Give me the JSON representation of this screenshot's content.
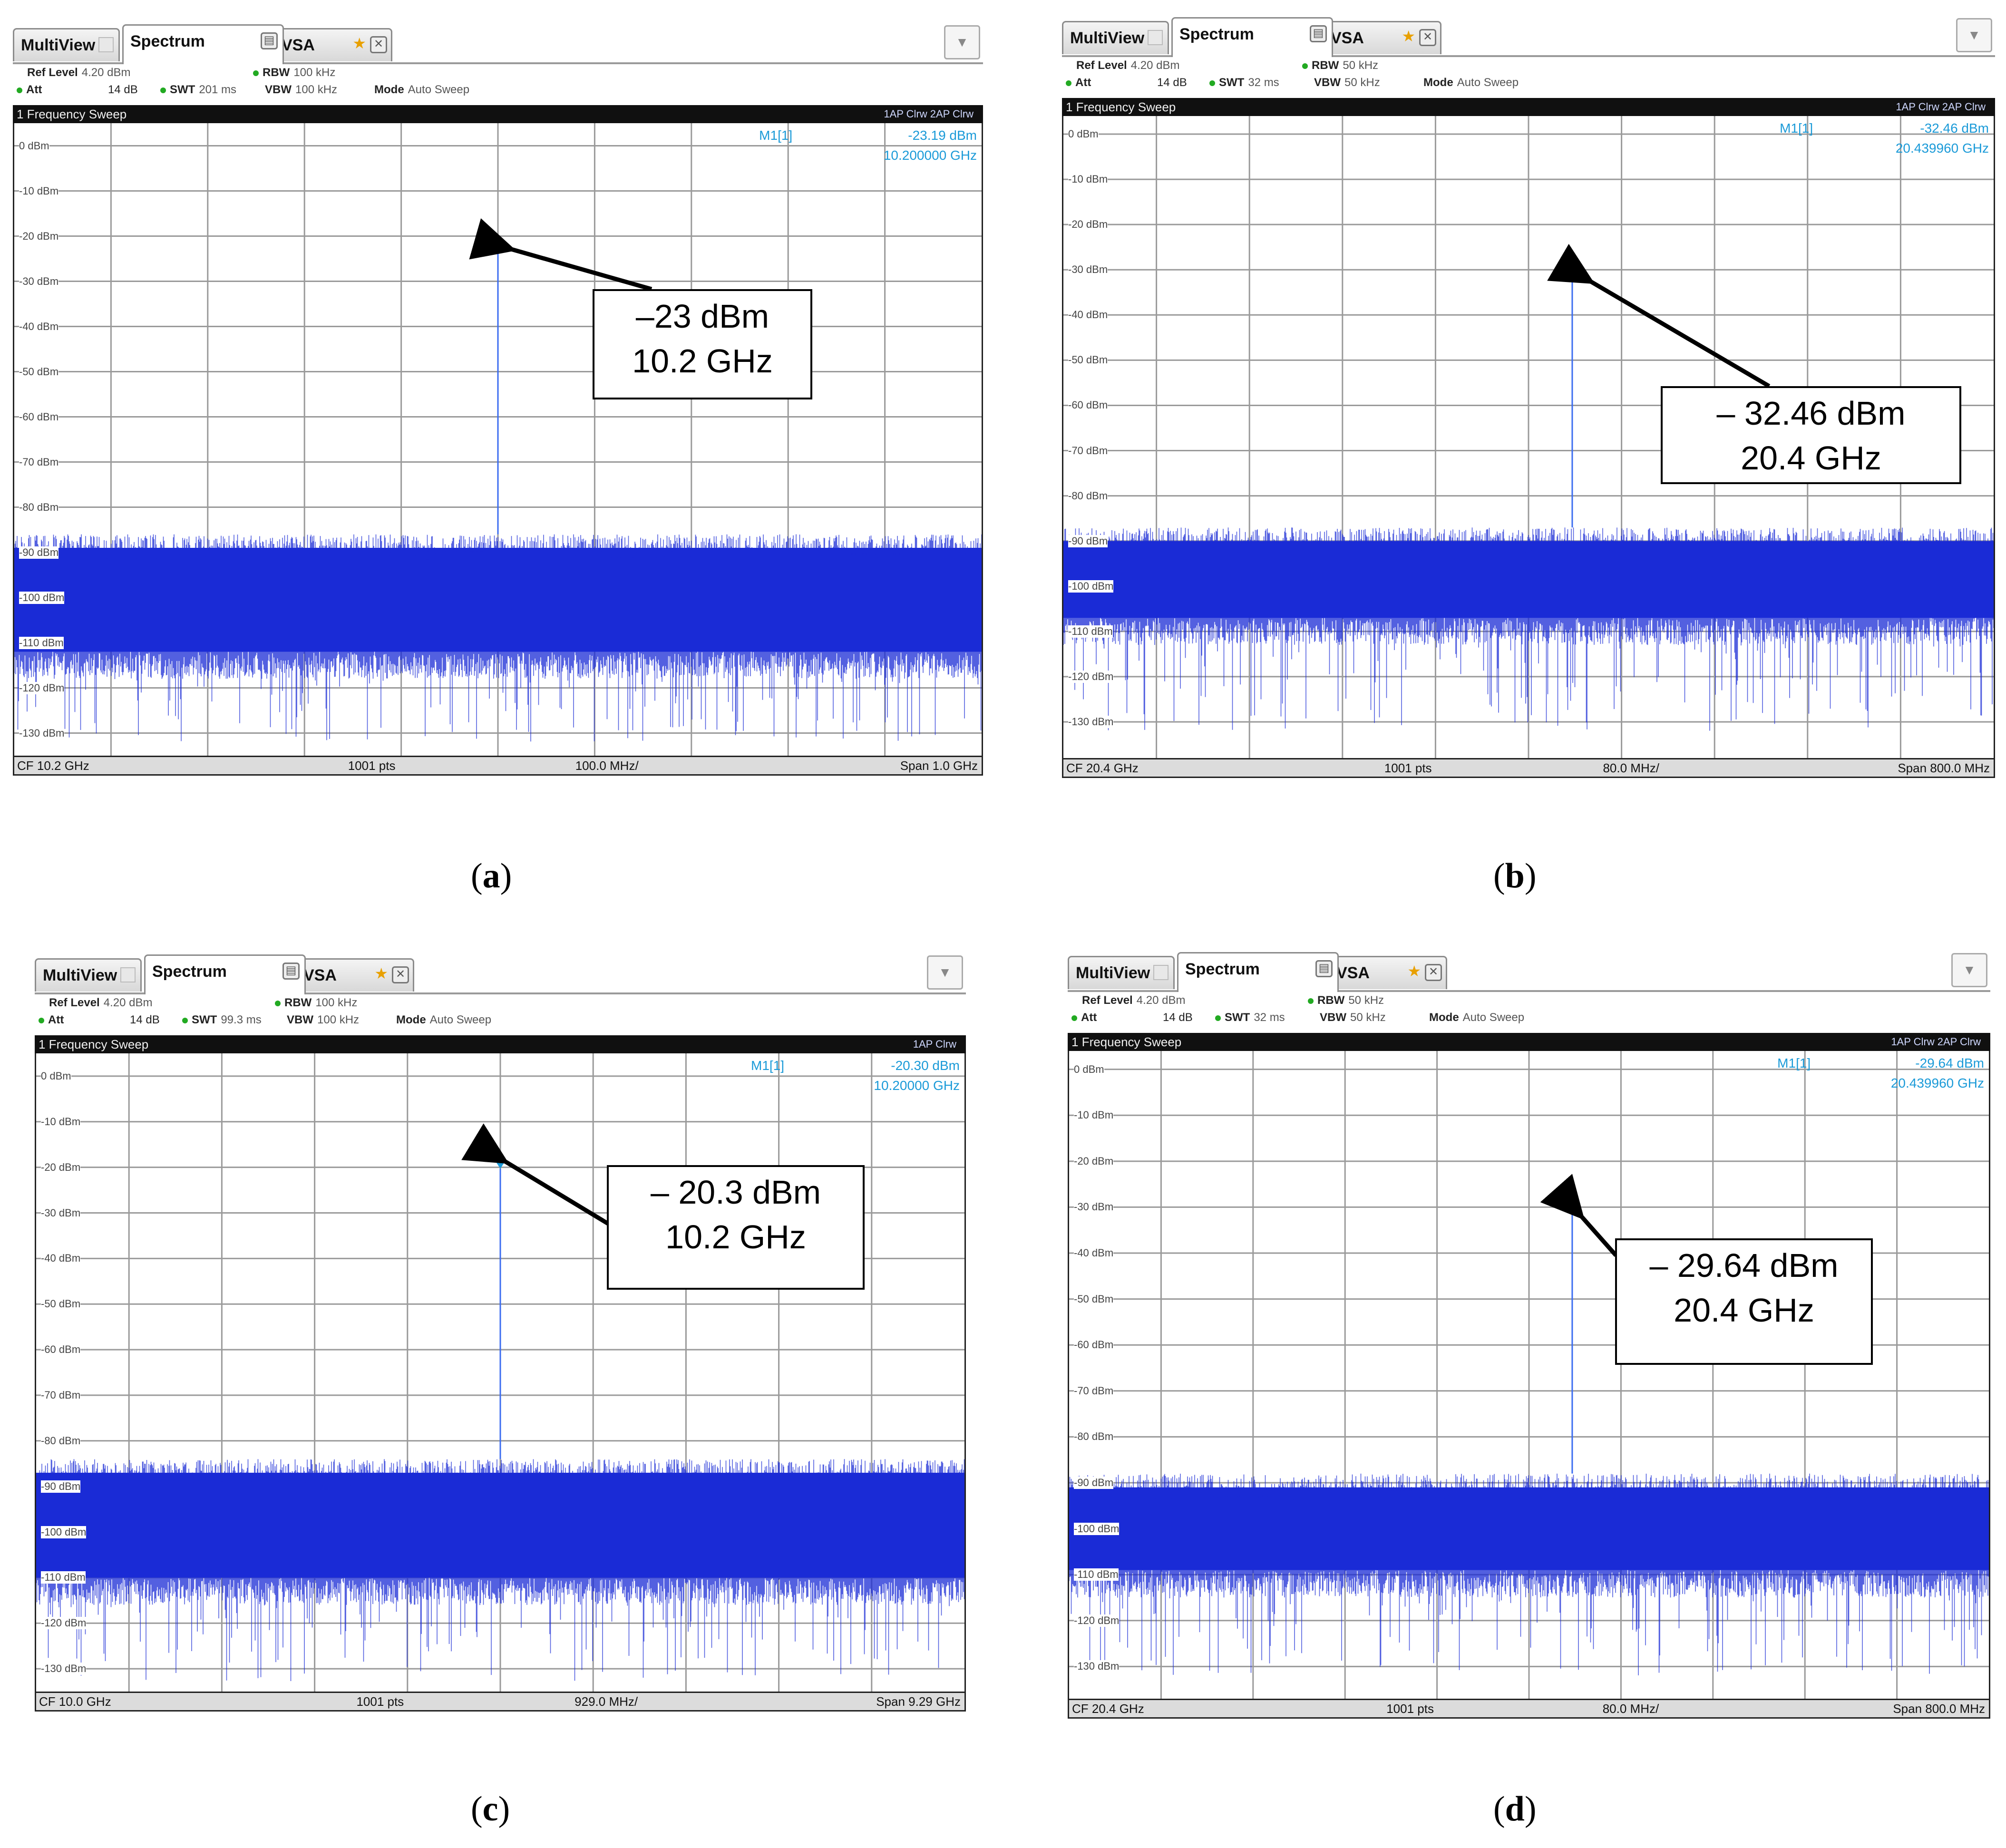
{
  "tabs": {
    "multiview": "MultiView",
    "spectrum": "Spectrum",
    "vsa": "VSA"
  },
  "labels": {
    "ref_level": "Ref Level",
    "att": "Att",
    "swt": "SWT",
    "rbw": "RBW",
    "vbw": "VBW",
    "mode": "Mode",
    "mode_value": "Auto Sweep",
    "sweep_title": "1 Frequency Sweep",
    "marker": "M1[1]",
    "pts": "1001 pts"
  },
  "icons": {
    "close": "close-icon",
    "pin": "star-icon",
    "menu": "chevron-down-icon"
  },
  "colors": {
    "trace": "#1a2bd6",
    "marker": "#1a9ad8",
    "grid": "#9a9a9a"
  },
  "panels": {
    "a": {
      "caption_letter": "a",
      "ref_level": "4.20 dBm",
      "att": "14 dB",
      "swt": "201 ms",
      "rbw": "100 kHz",
      "vbw": "100 kHz",
      "trace_info": "1AP Clrw  2AP Clrw",
      "marker_level": "-23.19 dBm",
      "marker_freq": "10.200000 GHz",
      "cf": "CF 10.2 GHz",
      "per_div": "100.0 MHz/",
      "span": "Span 1.0 GHz",
      "annotation_line1": "–23 dBm",
      "annotation_line2": "10.2 GHz",
      "y_ticks": [
        "0 dBm",
        "-10 dBm",
        "-20 dBm",
        "-30 dBm",
        "-40 dBm",
        "-50 dBm",
        "-60 dBm",
        "-70 dBm",
        "-80 dBm",
        "-90 dBm",
        "-100 dBm",
        "-110 dBm",
        "-120 dBm",
        "-130 dBm"
      ],
      "ylim": [
        -135,
        5
      ],
      "marker_x_fraction": 0.5,
      "noise_top_dbm": -86,
      "noise_band_bottom_dbm": -115,
      "noise_dip_dbm": -132
    },
    "b": {
      "caption_letter": "b",
      "ref_level": "4.20 dBm",
      "att": "14 dB",
      "swt": "32 ms",
      "rbw": "50 kHz",
      "vbw": "50 kHz",
      "trace_info": "1AP Clrw  2AP Clrw",
      "marker_level": "-32.46 dBm",
      "marker_freq": "20.439960 GHz",
      "cf": "CF 20.4 GHz",
      "per_div": "80.0 MHz/",
      "span": "Span 800.0 MHz",
      "annotation_line1": "– 32.46 dBm",
      "annotation_line2": "20.4 GHz",
      "y_ticks": [
        "0 dBm",
        "-10 dBm",
        "-20 dBm",
        "-30 dBm",
        "-40 dBm",
        "-50 dBm",
        "-60 dBm",
        "-70 dBm",
        "-80 dBm",
        "-90 dBm",
        "-100 dBm",
        "-110 dBm",
        "-120 dBm",
        "-130 dBm"
      ],
      "ylim": [
        -138,
        4
      ],
      "marker_x_fraction": 0.547,
      "noise_top_dbm": -87,
      "noise_band_bottom_dbm": -110,
      "noise_dip_dbm": -132
    },
    "c": {
      "caption_letter": "c",
      "ref_level": "4.20 dBm",
      "att": "14 dB",
      "swt": "99.3 ms",
      "rbw": "100 kHz",
      "vbw": "100 kHz",
      "trace_info": "1AP Clrw",
      "marker_level": "-20.30 dBm",
      "marker_freq": "10.20000 GHz",
      "cf": "CF 10.0 GHz",
      "per_div": "929.0 MHz/",
      "span": "Span 9.29 GHz",
      "annotation_line1": "– 20.3 dBm",
      "annotation_line2": "10.2 GHz",
      "y_ticks": [
        "0 dBm",
        "-10 dBm",
        "-20 dBm",
        "-30 dBm",
        "-40 dBm",
        "-50 dBm",
        "-60 dBm",
        "-70 dBm",
        "-80 dBm",
        "-90 dBm",
        "-100 dBm",
        "-110 dBm",
        "-120 dBm",
        "-130 dBm"
      ],
      "ylim": [
        -135,
        5
      ],
      "marker_x_fraction": 0.5,
      "noise_top_dbm": -84,
      "noise_band_bottom_dbm": -113,
      "noise_dip_dbm": -133
    },
    "d": {
      "caption_letter": "d",
      "ref_level": "4.20 dBm",
      "att": "14 dB",
      "swt": "32 ms",
      "rbw": "50 kHz",
      "vbw": "50 kHz",
      "trace_info": "1AP Clrw  2AP Clrw",
      "marker_level": "-29.64 dBm",
      "marker_freq": "20.439960 GHz",
      "cf": "CF 20.4 GHz",
      "per_div": "80.0 MHz/",
      "span": "Span 800.0 MHz",
      "annotation_line1": "– 29.64 dBm",
      "annotation_line2": "20.4 GHz",
      "y_ticks": [
        "0 dBm",
        "-10 dBm",
        "-20 dBm",
        "-30 dBm",
        "-40 dBm",
        "-50 dBm",
        "-60 dBm",
        "-70 dBm",
        "-80 dBm",
        "-90 dBm",
        "-100 dBm",
        "-110 dBm",
        "-120 dBm",
        "-130 dBm"
      ],
      "ylim": [
        -137,
        4
      ],
      "marker_x_fraction": 0.547,
      "noise_top_dbm": -88,
      "noise_band_bottom_dbm": -112,
      "noise_dip_dbm": -132
    }
  }
}
